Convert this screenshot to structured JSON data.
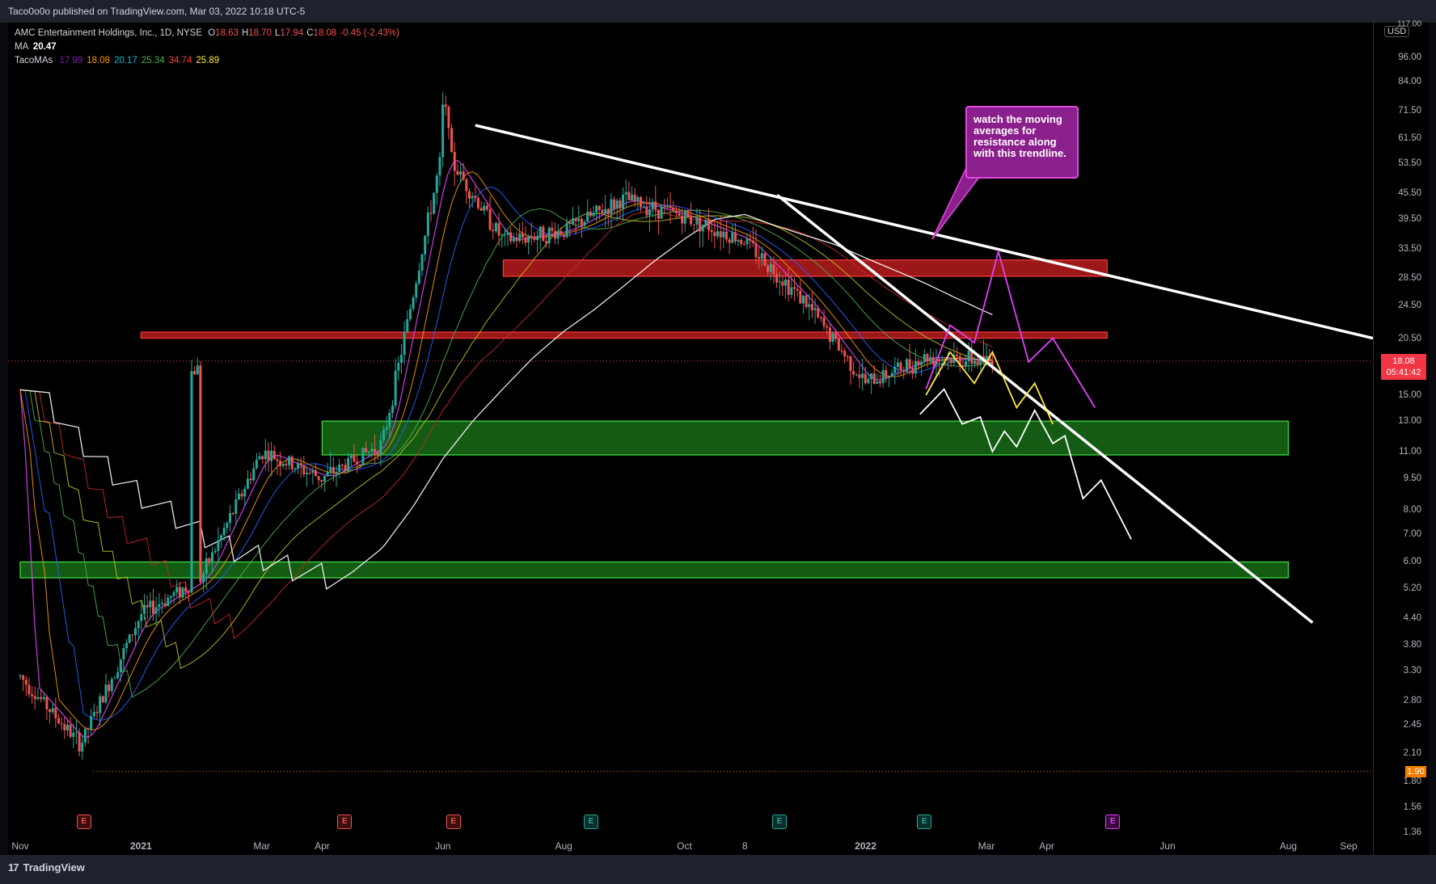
{
  "header": {
    "publish_line": "Taco0o0o published on TradingView.com, Mar 03, 2022 10:18 UTC-5"
  },
  "legend": {
    "symbol_line": "AMC Entertainment Holdings, Inc., 1D, NYSE",
    "ohlc": [
      {
        "label": "O",
        "value": "18.63"
      },
      {
        "label": "H",
        "value": "18.70"
      },
      {
        "label": "L",
        "value": "17.94"
      },
      {
        "label": "C",
        "value": "18.08"
      },
      {
        "label": "",
        "value": "-0.45 (-2.43%)"
      }
    ],
    "ma_label": "MA",
    "ma_value": "20.47",
    "tacomas_label": "TacoMAs",
    "tacomas_values": [
      {
        "value": "17.99",
        "color": "#7b1fa2"
      },
      {
        "value": "18.08",
        "color": "#ff9800"
      },
      {
        "value": "20.17",
        "color": "#00bcd4"
      },
      {
        "value": "25.34",
        "color": "#4caf50"
      },
      {
        "value": "34.74",
        "color": "#f44336"
      },
      {
        "value": "25.89",
        "color": "#ffeb3b"
      }
    ]
  },
  "annotation": {
    "text": "watch the moving averages for resistance along with this trendline."
  },
  "price_axis": {
    "currency": "USD",
    "current_price": "18.08",
    "countdown": "05:41:42",
    "low_marker": "1.90",
    "top_clipped_label": "117.00",
    "labels": [
      "96.00",
      "84.00",
      "71.50",
      "61.50",
      "53.50",
      "45.50",
      "39.50",
      "33.50",
      "28.50",
      "24.50",
      "20.50",
      "15.00",
      "13.00",
      "11.00",
      "9.50",
      "8.00",
      "7.00",
      "6.00",
      "5.20",
      "4.40",
      "3.80",
      "3.30",
      "2.80",
      "2.45",
      "2.10",
      "1.80",
      "1.56",
      "1.36"
    ]
  },
  "time_axis": {
    "labels": [
      "Nov",
      "2021",
      "Mar",
      "Apr",
      "Jun",
      "Aug",
      "Oct",
      "8",
      "2022",
      "Mar",
      "Apr",
      "Jun",
      "Aug",
      "Sep"
    ]
  },
  "events": [
    {
      "letter": "E",
      "kind": "earnings-red"
    },
    {
      "letter": "E",
      "kind": "earnings-red"
    },
    {
      "letter": "E",
      "kind": "earnings-red"
    },
    {
      "letter": "E",
      "kind": "earnings-teal"
    },
    {
      "letter": "E",
      "kind": "earnings-teal"
    },
    {
      "letter": "E",
      "kind": "earnings-teal"
    },
    {
      "letter": "E",
      "kind": "earnings-magenta"
    }
  ],
  "footer": {
    "brand": "TradingView",
    "logo_text": "17"
  },
  "colors": {
    "up_candle": "#26a69a",
    "down_candle": "#ef5350",
    "resistance_zone": "#b71c1c",
    "support_zone": "#1b7a1b",
    "trendline": "#ffffff",
    "projection_magenta": "#e040fb",
    "projection_yellow": "#ffeb3b",
    "projection_white": "#ffffff"
  },
  "chart_data": {
    "type": "candlestick",
    "symbol": "AMC",
    "interval": "1D",
    "exchange": "NYSE",
    "scale": "log",
    "ylim": [
      1.36,
      117
    ],
    "x_range": [
      "2020-11",
      "2022-09"
    ],
    "series": [
      {
        "name": "AMC",
        "x": [
          "2020-11",
          "2020-12",
          "2021-01",
          "2021-02",
          "2021-03",
          "2021-04",
          "2021-05",
          "2021-06",
          "2021-07",
          "2021-08",
          "2021-09",
          "2021-10",
          "2021-11",
          "2021-12",
          "2022-01",
          "2022-02",
          "2022-03"
        ],
        "values": [
          3.2,
          2.2,
          4.5,
          5.5,
          11.0,
          9.5,
          11.5,
          58.0,
          35.0,
          37.0,
          44.0,
          40.0,
          35.0,
          25.0,
          16.0,
          18.5,
          18.08
        ]
      }
    ],
    "last": {
      "open": 18.63,
      "high": 18.7,
      "low": 17.94,
      "close": 18.08,
      "change": -0.45,
      "change_pct": -2.43
    },
    "zones": [
      {
        "kind": "resistance",
        "low": 28.8,
        "high": 31.5,
        "from": "2021-07",
        "to": "2022-05"
      },
      {
        "kind": "resistance",
        "low": 20.5,
        "high": 21.2,
        "from": "2021-01",
        "to": "2022-05"
      },
      {
        "kind": "support",
        "low": 10.8,
        "high": 13.0,
        "from": "2021-04",
        "to": "2022-08"
      },
      {
        "kind": "support",
        "low": 5.5,
        "high": 6.0,
        "from": "2020-11",
        "to": "2022-08"
      }
    ],
    "trendlines": [
      {
        "from": [
          "2021-06",
          66
        ],
        "to": [
          "2022-09",
          20.5
        ]
      },
      {
        "from": [
          "2021-11",
          45
        ],
        "to": [
          "2022-08",
          4.3
        ]
      }
    ],
    "low_line": 1.9
  }
}
